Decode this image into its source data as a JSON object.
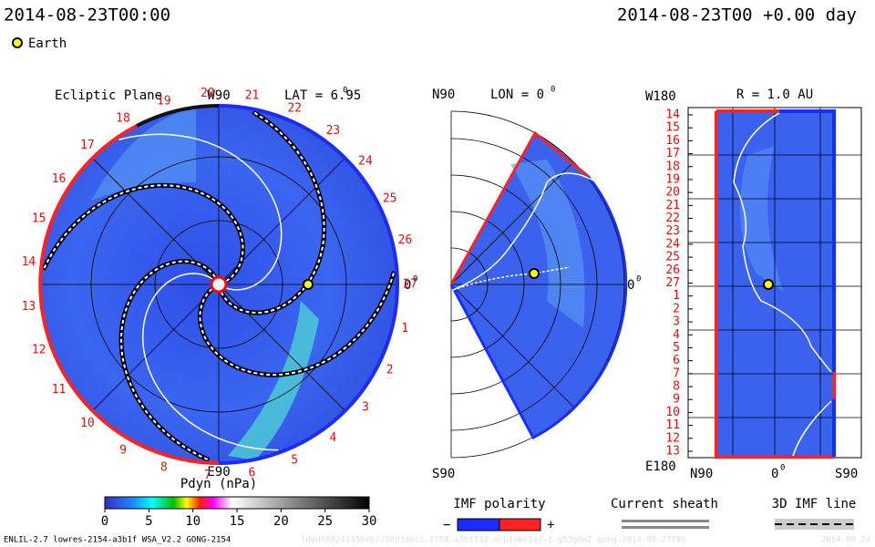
{
  "header": {
    "time_left": "2014-08-23T00:00",
    "time_right": "2014-08-23T00 +0.00 day",
    "earth_legend": "Earth"
  },
  "ecliptic": {
    "title": "Ecliptic Plane",
    "top": "W90",
    "lat": "LAT = 6.95",
    "lat_sup": "0",
    "right": "0",
    "right_sup": "0",
    "bottom": "E90",
    "sectors": [
      "1",
      "2",
      "3",
      "4",
      "5",
      "6",
      "7",
      "8",
      "9",
      "10",
      "11",
      "12",
      "13",
      "14",
      "15",
      "16",
      "17",
      "18",
      "19",
      "20",
      "21",
      "22",
      "23",
      "24",
      "25",
      "26",
      "27"
    ]
  },
  "colorbar": {
    "title": "Pdyn (nPa)",
    "ticks": [
      0,
      5,
      10,
      15,
      20,
      25,
      30
    ]
  },
  "meridional": {
    "top": "N90",
    "lon": "LON = 0",
    "lon_sup": "0",
    "right": "0",
    "right_sup": "0",
    "bottom": "S90"
  },
  "radial": {
    "top": "W180",
    "title": "R = 1.0 AU",
    "bottom": "E180",
    "x_left": "N90",
    "x_mid": "0",
    "x_mid_sup": "0",
    "x_right": "S90",
    "sectors": [
      "14",
      "15",
      "16",
      "17",
      "18",
      "19",
      "20",
      "21",
      "22",
      "23",
      "24",
      "25",
      "26",
      "27",
      "1",
      "2",
      "3",
      "4",
      "5",
      "6",
      "7",
      "8",
      "9",
      "10",
      "11",
      "12",
      "13"
    ]
  },
  "legends": {
    "imf_polarity": "IMF polarity",
    "minus": "−",
    "plus": "+",
    "current_sheath": "Current sheath",
    "imf_line": "3D IMF line"
  },
  "footer": {
    "run": "ENLIL-2.7 lowres-2154-a3b1f WSA_V2.2 GONG-2154",
    "id": "ld0d6082413364b/258d3d6c1.2154-a3b1f32-mcp1umn1a1-1.g53g6a2.gong-2014-08-23T00",
    "date": "2014-08-24"
  }
}
